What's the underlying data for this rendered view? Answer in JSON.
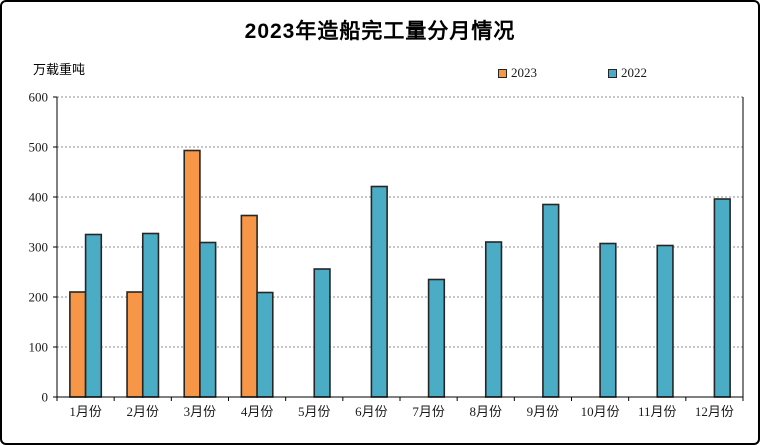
{
  "chart_data": {
    "type": "bar",
    "title": "2023年造船完工量分月情况",
    "ylabel": "万载重吨",
    "xlabel": "",
    "categories": [
      "1月份",
      "2月份",
      "3月份",
      "4月份",
      "5月份",
      "6月份",
      "7月份",
      "8月份",
      "9月份",
      "10月份",
      "11月份",
      "12月份"
    ],
    "series": [
      {
        "name": "2023",
        "color": "#F79646",
        "values": [
          210,
          210,
          493,
          363,
          null,
          null,
          null,
          null,
          null,
          null,
          null,
          null
        ]
      },
      {
        "name": "2022",
        "color": "#4BACC6",
        "values": [
          325,
          327,
          309,
          209,
          256,
          421,
          235,
          310,
          385,
          307,
          303,
          396
        ]
      }
    ],
    "ylim": [
      0,
      600
    ],
    "ytick_step": 100,
    "yticks": [
      0,
      100,
      200,
      300,
      400,
      500,
      600
    ],
    "grid": "horizontal-dashed",
    "legend_position": "top-right",
    "gridline_color": "#8c8c8c",
    "bar_border_color": "#262626",
    "axis_color": "#000000"
  }
}
